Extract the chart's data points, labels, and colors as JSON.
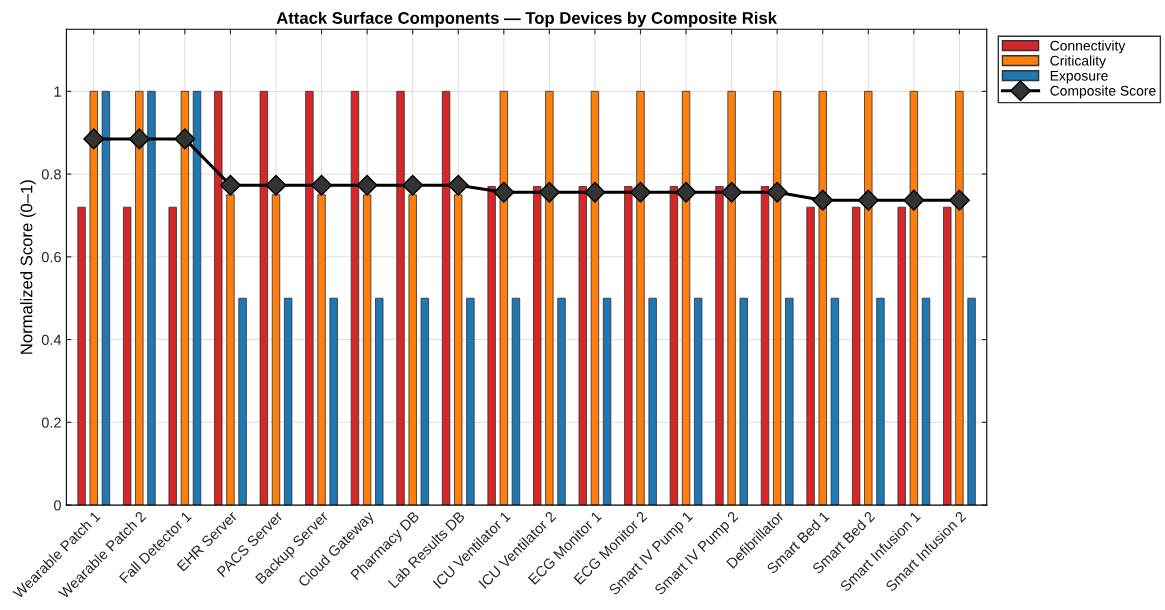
{
  "chart_data": {
    "type": "bar",
    "title": "Attack Surface Components — Top Devices by Composite Risk",
    "ylabel": "Normalized Score (0–1)",
    "categories": [
      "Wearable Patch 1",
      "Wearable Patch 2",
      "Fall Detector 1",
      "EHR Server",
      "PACS Server",
      "Backup Server",
      "Cloud Gateway",
      "Pharmacy DB",
      "Lab Results DB",
      "ICU Ventilator 1",
      "ICU Ventilator 2",
      "ECG Monitor 1",
      "ECG Monitor 2",
      "Smart IV Pump 1",
      "Smart IV Pump 2",
      "Defibrillator",
      "Smart Bed 1",
      "Smart Bed 2",
      "Smart Infusion 1",
      "Smart Infusion 2"
    ],
    "series": [
      {
        "name": "Connectivity",
        "color": "#d62728",
        "values": [
          0.72,
          0.72,
          0.72,
          1,
          1,
          1,
          1,
          1,
          1,
          0.77,
          0.77,
          0.77,
          0.77,
          0.77,
          0.77,
          0.77,
          0.72,
          0.72,
          0.72,
          0.72
        ]
      },
      {
        "name": "Criticality",
        "color": "#ff7f0e",
        "values": [
          1,
          1,
          1,
          0.75,
          0.75,
          0.75,
          0.75,
          0.75,
          0.75,
          1,
          1,
          1,
          1,
          1,
          1,
          1,
          1,
          1,
          1,
          1
        ]
      },
      {
        "name": "Exposure",
        "color": "#1f77b4",
        "values": [
          1,
          1,
          1,
          0.5,
          0.5,
          0.5,
          0.5,
          0.5,
          0.5,
          0.5,
          0.5,
          0.5,
          0.5,
          0.5,
          0.5,
          0.5,
          0.5,
          0.5,
          0.5,
          0.5
        ]
      },
      {
        "name": "Composite Score",
        "type": "line",
        "color": "#000000",
        "marker": "diamond",
        "values": [
          0.885,
          0.885,
          0.885,
          0.773,
          0.773,
          0.773,
          0.773,
          0.773,
          0.773,
          0.756,
          0.756,
          0.756,
          0.756,
          0.756,
          0.756,
          0.756,
          0.737,
          0.737,
          0.737,
          0.737
        ]
      }
    ],
    "ylim": [
      0,
      1.15
    ],
    "yticks": [
      0,
      0.2,
      0.4,
      0.6,
      0.8,
      1
    ],
    "grid": true,
    "legend": "right"
  }
}
